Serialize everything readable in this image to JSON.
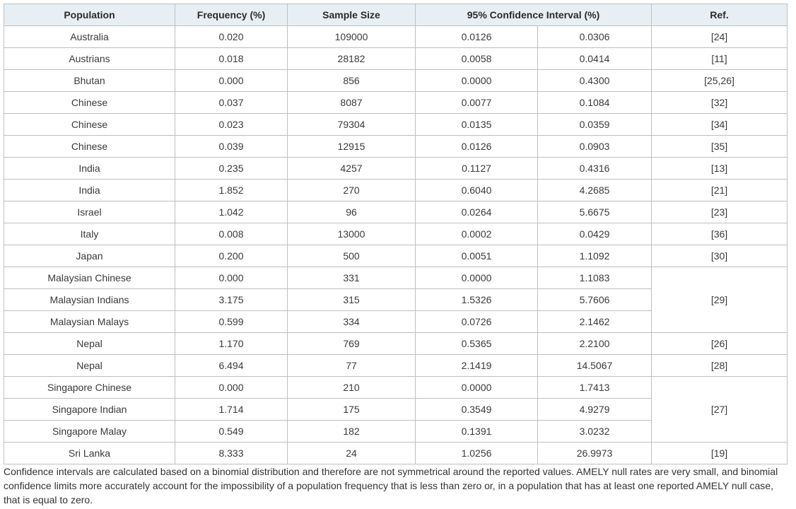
{
  "table": {
    "headers": {
      "population": "Population",
      "frequency": "Frequency (%)",
      "sample_size": "Sample Size",
      "ci": "95% Confidence Interval (%)",
      "ref": "Ref."
    },
    "rows": [
      {
        "population": "Australia",
        "frequency": "0.020",
        "sample_size": "109000",
        "ci_low": "0.0126",
        "ci_high": "0.0306",
        "ref": "[24]"
      },
      {
        "population": "Austrians",
        "frequency": "0.018",
        "sample_size": "28182",
        "ci_low": "0.0058",
        "ci_high": "0.0414",
        "ref": "[11]"
      },
      {
        "population": "Bhutan",
        "frequency": "0.000",
        "sample_size": "856",
        "ci_low": "0.0000",
        "ci_high": "0.4300",
        "ref": "[25,26]"
      },
      {
        "population": "Chinese",
        "frequency": "0.037",
        "sample_size": "8087",
        "ci_low": "0.0077",
        "ci_high": "0.1084",
        "ref": "[32]"
      },
      {
        "population": "Chinese",
        "frequency": "0.023",
        "sample_size": "79304",
        "ci_low": "0.0135",
        "ci_high": "0.0359",
        "ref": "[34]"
      },
      {
        "population": "Chinese",
        "frequency": "0.039",
        "sample_size": "12915",
        "ci_low": "0.0126",
        "ci_high": "0.0903",
        "ref": "[35]"
      },
      {
        "population": "India",
        "frequency": "0.235",
        "sample_size": "4257",
        "ci_low": "0.1127",
        "ci_high": "0.4316",
        "ref": "[13]"
      },
      {
        "population": "India",
        "frequency": "1.852",
        "sample_size": "270",
        "ci_low": "0.6040",
        "ci_high": "4.2685",
        "ref": "[21]"
      },
      {
        "population": "Israel",
        "frequency": "1.042",
        "sample_size": "96",
        "ci_low": "0.0264",
        "ci_high": "5.6675",
        "ref": "[23]"
      },
      {
        "population": "Italy",
        "frequency": "0.008",
        "sample_size": "13000",
        "ci_low": "0.0002",
        "ci_high": "0.0429",
        "ref": "[36]"
      },
      {
        "population": "Japan",
        "frequency": "0.200",
        "sample_size": "500",
        "ci_low": "0.0051",
        "ci_high": "1.1092",
        "ref": "[30]"
      },
      {
        "population": "Malaysian Chinese",
        "frequency": "0.000",
        "sample_size": "331",
        "ci_low": "0.0000",
        "ci_high": "1.1083",
        "ref": "[29]",
        "ref_span": 3
      },
      {
        "population": "Malaysian Indians",
        "frequency": "3.175",
        "sample_size": "315",
        "ci_low": "1.5326",
        "ci_high": "5.7606",
        "ref": null
      },
      {
        "population": "Malaysian Malays",
        "frequency": "0.599",
        "sample_size": "334",
        "ci_low": "0.0726",
        "ci_high": "2.1462",
        "ref": null
      },
      {
        "population": "Nepal",
        "frequency": "1.170",
        "sample_size": "769",
        "ci_low": "0.5365",
        "ci_high": "2.2100",
        "ref": "[26]"
      },
      {
        "population": "Nepal",
        "frequency": "6.494",
        "sample_size": "77",
        "ci_low": "2.1419",
        "ci_high": "14.5067",
        "ref": "[28]"
      },
      {
        "population": "Singapore Chinese",
        "frequency": "0.000",
        "sample_size": "210",
        "ci_low": "0.0000",
        "ci_high": "1.7413",
        "ref": "[27]",
        "ref_span": 3
      },
      {
        "population": "Singapore Indian",
        "frequency": "1.714",
        "sample_size": "175",
        "ci_low": "0.3549",
        "ci_high": "4.9279",
        "ref": null
      },
      {
        "population": "Singapore Malay",
        "frequency": "0.549",
        "sample_size": "182",
        "ci_low": "0.1391",
        "ci_high": "3.0232",
        "ref": null
      },
      {
        "population": "Sri Lanka",
        "frequency": "8.333",
        "sample_size": "24",
        "ci_low": "1.0256",
        "ci_high": "26.9973",
        "ref": "[19]"
      }
    ]
  },
  "footnote": "Confidence intervals are calculated based on a binomial distribution and therefore are not symmetrical around the reported values. AMELY null rates are very small, and binomial confidence limits more accurately account for the impossibility of a population frequency that is less than zero or, in a population that has at least one reported AMELY null case, that is equal to zero.",
  "colors": {
    "header_background": "#e7eff4",
    "border": "#bfbfbf",
    "text": "#333333"
  }
}
